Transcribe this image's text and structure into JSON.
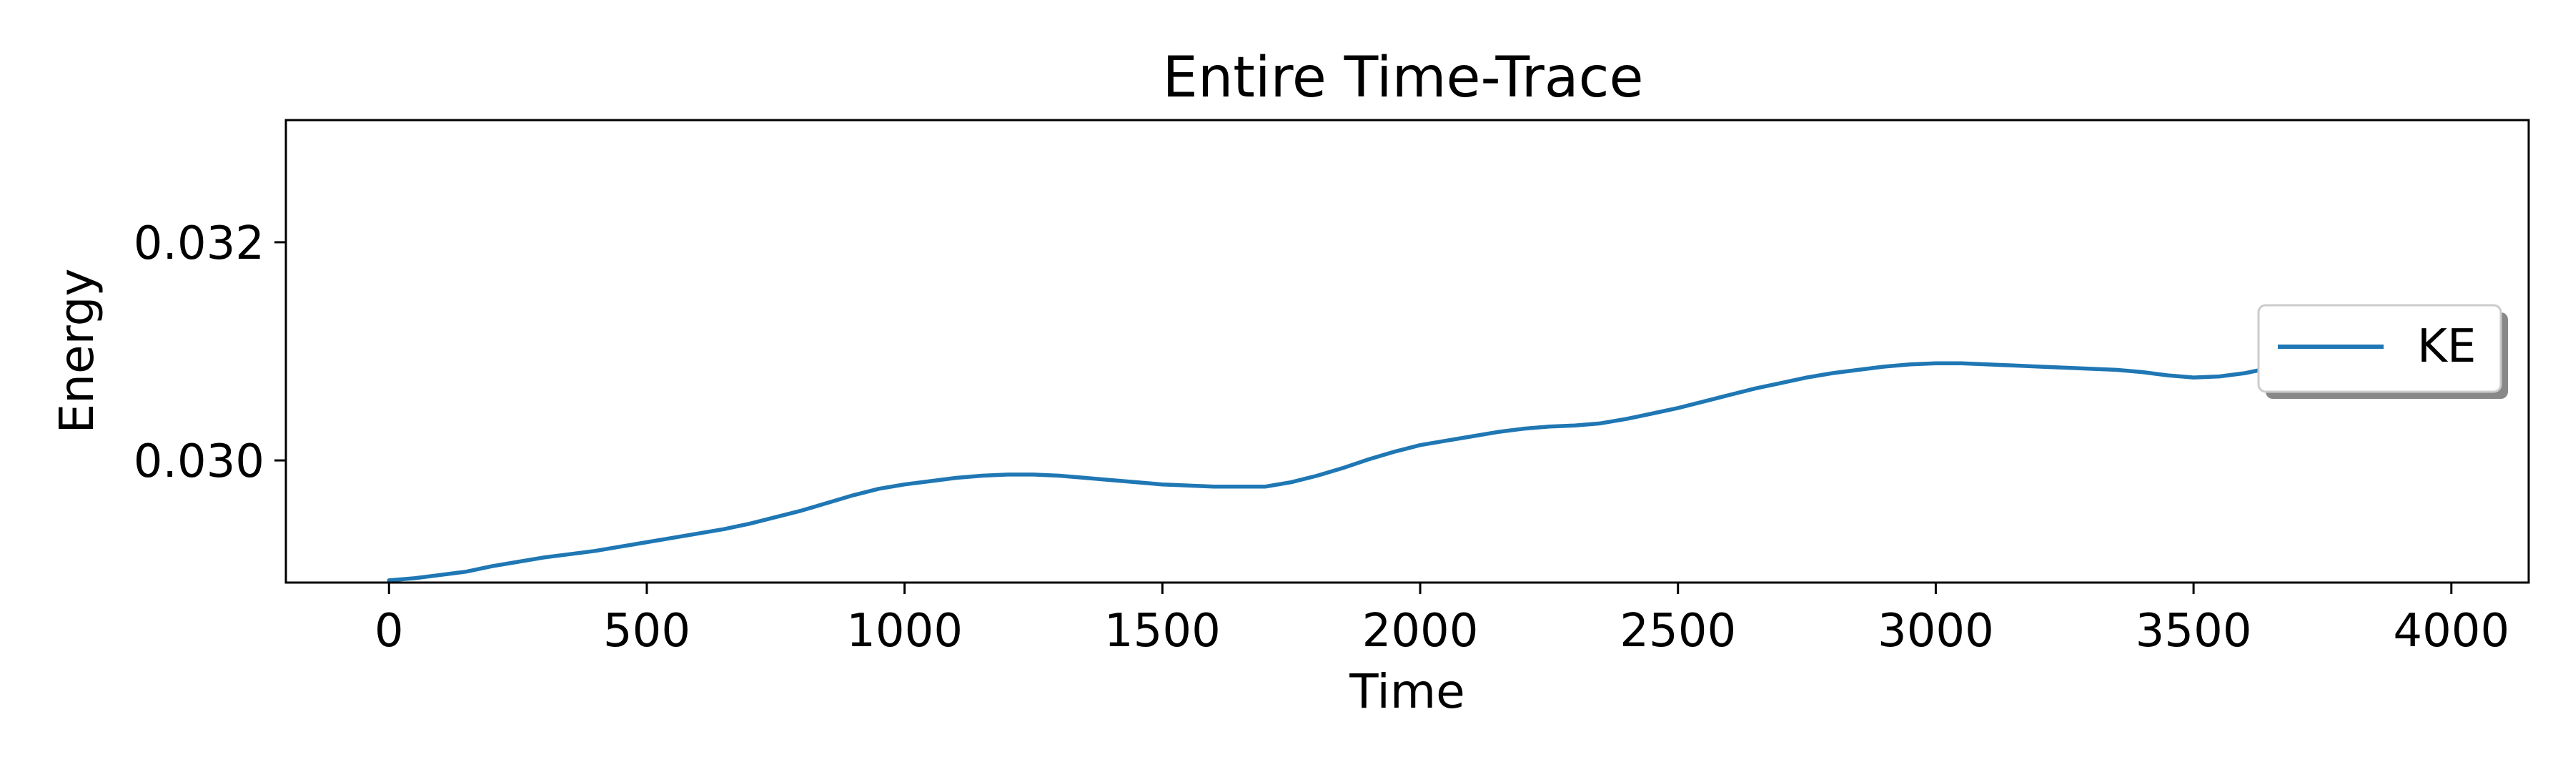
{
  "chart_data": {
    "type": "line",
    "title": "Entire Time-Trace",
    "xlabel": "Time",
    "ylabel": "Energy",
    "xlim": [
      -200,
      4150
    ],
    "ylim": [
      0.02888,
      0.03312
    ],
    "xticks": [
      0,
      500,
      1000,
      1500,
      2000,
      2500,
      3000,
      3500,
      4000
    ],
    "xtick_labels": [
      "0",
      "500",
      "1000",
      "1500",
      "2000",
      "2500",
      "3000",
      "3500",
      "4000"
    ],
    "yticks": [
      0.03,
      0.032
    ],
    "ytick_labels": [
      "0.030",
      "0.032"
    ],
    "grid": false,
    "legend_position": "center-right",
    "series": [
      {
        "name": "KE",
        "color": "#1f77b4",
        "x": [
          0,
          50,
          100,
          150,
          200,
          250,
          300,
          350,
          400,
          450,
          500,
          550,
          600,
          650,
          700,
          750,
          800,
          850,
          900,
          950,
          1000,
          1050,
          1100,
          1150,
          1200,
          1250,
          1300,
          1350,
          1400,
          1450,
          1500,
          1550,
          1600,
          1650,
          1700,
          1750,
          1800,
          1850,
          1900,
          1950,
          2000,
          2050,
          2100,
          2150,
          2200,
          2250,
          2300,
          2350,
          2400,
          2450,
          2500,
          2550,
          2600,
          2650,
          2700,
          2750,
          2800,
          2850,
          2900,
          2950,
          3000,
          3050,
          3100,
          3150,
          3200,
          3250,
          3300,
          3350,
          3400,
          3450,
          3500,
          3550,
          3600,
          3650,
          3700,
          3750,
          3800,
          3850,
          3900,
          3950
        ],
        "y": [
          0.0289,
          0.02892,
          0.02895,
          0.02898,
          0.02903,
          0.02907,
          0.02911,
          0.02914,
          0.02917,
          0.02921,
          0.02925,
          0.02929,
          0.02933,
          0.02937,
          0.02942,
          0.02948,
          0.02954,
          0.02961,
          0.02968,
          0.02974,
          0.02978,
          0.02981,
          0.02984,
          0.02986,
          0.02987,
          0.02987,
          0.02986,
          0.02984,
          0.02982,
          0.0298,
          0.02978,
          0.02977,
          0.02976,
          0.02976,
          0.02976,
          0.0298,
          0.02986,
          0.02993,
          0.03001,
          0.03008,
          0.03014,
          0.03018,
          0.03022,
          0.03026,
          0.03029,
          0.03031,
          0.03032,
          0.03034,
          0.03038,
          0.03043,
          0.03048,
          0.03054,
          0.0306,
          0.03066,
          0.03071,
          0.03076,
          0.0308,
          0.03083,
          0.03086,
          0.03088,
          0.03089,
          0.03089,
          0.03088,
          0.03087,
          0.03086,
          0.03085,
          0.03084,
          0.03083,
          0.03081,
          0.03078,
          0.03076,
          0.03077,
          0.0308,
          0.03085,
          0.03091,
          0.03098,
          0.03105,
          0.03111,
          0.03118,
          0.03125
        ]
      }
    ]
  }
}
